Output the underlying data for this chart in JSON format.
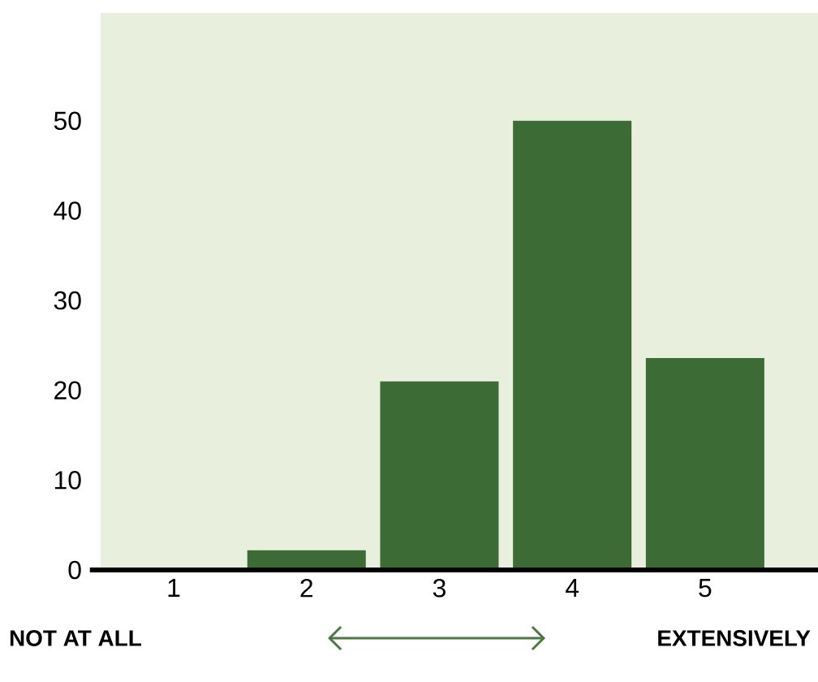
{
  "chart_data": {
    "type": "bar",
    "categories": [
      "1",
      "2",
      "3",
      "4",
      "5"
    ],
    "values": [
      0,
      2.2,
      21,
      50,
      23.6
    ],
    "color": "#3d6b35",
    "ylim": [
      0,
      62
    ],
    "yticks": [
      0,
      10,
      20,
      30,
      40,
      50
    ],
    "grid": false,
    "annotations": [
      "NOT AT ALL",
      "EXTENSIVELY"
    ]
  }
}
